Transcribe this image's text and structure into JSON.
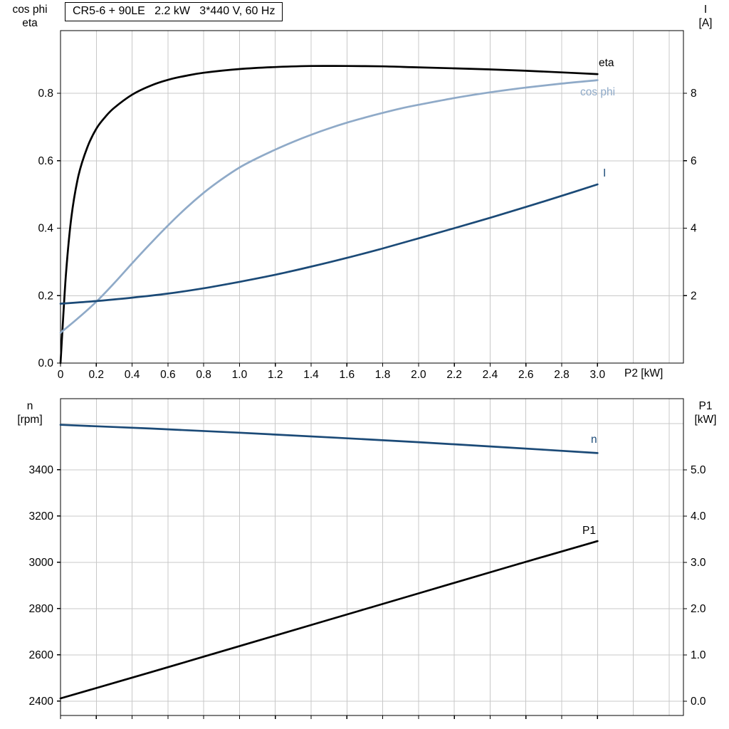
{
  "colors": {
    "black": "#000000",
    "dark_blue": "#1b4a77",
    "light_blue": "#8faac8",
    "grid": "#c8c8c8",
    "axis": "#000000",
    "background": "#ffffff"
  },
  "axis_titles": {
    "top_left": [
      "cos phi",
      "eta"
    ],
    "top_right": [
      "I",
      "[A]"
    ],
    "bottom_left": [
      "n",
      "[rpm]"
    ],
    "bottom_right": [
      "P1",
      "[kW]"
    ],
    "x_label": "P2 [kW]"
  },
  "chart_data": [
    {
      "type": "line",
      "title": "CR5-6 + 90LE   2.2 kW   3*440 V, 60 Hz",
      "x_axis": {
        "label": "P2 [kW]",
        "min": 0,
        "max": 3.48,
        "tick_values": [
          0,
          0.2,
          0.4,
          0.6,
          0.8,
          1.0,
          1.2,
          1.4,
          1.6,
          1.8,
          2.0,
          2.2,
          2.4,
          2.6,
          2.8,
          3.0
        ],
        "tick_labels": [
          "0",
          "0.2",
          "0.4",
          "0.6",
          "0.8",
          "1.0",
          "1.2",
          "1.4",
          "1.6",
          "1.8",
          "2.0",
          "2.2",
          "2.4",
          "2.6",
          "2.8",
          "3.0"
        ],
        "grid_values": [
          0.2,
          0.4,
          0.6,
          0.8,
          1.0,
          1.2,
          1.4,
          1.6,
          1.8,
          2.0,
          2.2,
          2.4,
          2.6,
          2.8,
          3.0,
          3.2,
          3.4
        ]
      },
      "left_axis": {
        "label": "cos phi / eta",
        "min": 0,
        "max": 0.986,
        "tick_values": [
          0.0,
          0.2,
          0.4,
          0.6,
          0.8
        ],
        "tick_labels": [
          "0.0",
          "0.2",
          "0.4",
          "0.6",
          "0.8"
        ],
        "grid_values": [
          0.2,
          0.4,
          0.6,
          0.8
        ]
      },
      "right_axis": {
        "label": "I [A]",
        "min": 0,
        "max": 9.86,
        "tick_values": [
          2,
          4,
          6,
          8
        ],
        "tick_labels": [
          "2",
          "4",
          "6",
          "8"
        ]
      },
      "legend_position": "inline-right",
      "grid": true,
      "series": [
        {
          "name": "eta",
          "axis": "left",
          "color": "black",
          "x": [
            0,
            0.03,
            0.06,
            0.1,
            0.15,
            0.2,
            0.25,
            0.3,
            0.4,
            0.5,
            0.6,
            0.7,
            0.8,
            1.0,
            1.2,
            1.4,
            1.6,
            1.8,
            2.0,
            2.2,
            2.4,
            2.6,
            2.8,
            3.0
          ],
          "y": [
            0,
            0.26,
            0.43,
            0.555,
            0.64,
            0.695,
            0.73,
            0.757,
            0.796,
            0.822,
            0.84,
            0.852,
            0.861,
            0.872,
            0.878,
            0.881,
            0.881,
            0.88,
            0.877,
            0.874,
            0.871,
            0.867,
            0.862,
            0.857
          ]
        },
        {
          "name": "cos phi",
          "axis": "left",
          "color": "light_blue",
          "x": [
            0,
            0.1,
            0.2,
            0.3,
            0.4,
            0.5,
            0.6,
            0.7,
            0.8,
            0.9,
            1.0,
            1.1,
            1.2,
            1.3,
            1.4,
            1.5,
            1.6,
            1.7,
            1.8,
            1.9,
            2.0,
            2.2,
            2.4,
            2.6,
            2.8,
            3.0
          ],
          "y": [
            0.09,
            0.134,
            0.182,
            0.237,
            0.296,
            0.353,
            0.408,
            0.459,
            0.505,
            0.545,
            0.58,
            0.608,
            0.633,
            0.656,
            0.677,
            0.696,
            0.713,
            0.728,
            0.742,
            0.755,
            0.766,
            0.786,
            0.803,
            0.817,
            0.829,
            0.839
          ]
        },
        {
          "name": "I",
          "axis": "right",
          "color": "dark_blue",
          "x": [
            0,
            0.2,
            0.4,
            0.6,
            0.8,
            1.0,
            1.2,
            1.4,
            1.6,
            1.8,
            2.0,
            2.2,
            2.4,
            2.6,
            2.8,
            3.0
          ],
          "y": [
            1.76,
            1.84,
            1.94,
            2.06,
            2.22,
            2.41,
            2.62,
            2.86,
            3.12,
            3.4,
            3.7,
            4.0,
            4.31,
            4.63,
            4.96,
            5.3
          ]
        }
      ]
    },
    {
      "type": "line",
      "title": "",
      "x_axis": {
        "label": "",
        "min": 0,
        "max": 3.48,
        "tick_values": [
          0,
          0.2,
          0.4,
          0.6,
          0.8,
          1.0,
          1.2,
          1.4,
          1.6,
          1.8,
          2.0,
          2.2,
          2.4,
          2.6,
          2.8,
          3.0
        ],
        "tick_labels": [],
        "grid_values": [
          0.2,
          0.4,
          0.6,
          0.8,
          1.0,
          1.2,
          1.4,
          1.6,
          1.8,
          2.0,
          2.2,
          2.4,
          2.6,
          2.8,
          3.0,
          3.2,
          3.4
        ]
      },
      "left_axis": {
        "label": "n [rpm]",
        "min": 2338,
        "max": 3707,
        "tick_values": [
          2400,
          2600,
          2800,
          3000,
          3200,
          3400
        ],
        "tick_labels": [
          "2400",
          "2600",
          "2800",
          "3000",
          "3200",
          "3400"
        ],
        "grid_values": [
          2400,
          2600,
          2800,
          3000,
          3200,
          3400,
          3600
        ]
      },
      "right_axis": {
        "label": "P1 [kW]",
        "min": -0.31,
        "max": 6.54,
        "tick_values": [
          0.0,
          1.0,
          2.0,
          3.0,
          4.0,
          5.0
        ],
        "tick_labels": [
          "0.0",
          "1.0",
          "2.0",
          "3.0",
          "4.0",
          "5.0"
        ]
      },
      "legend_position": "inline-right",
      "grid": true,
      "series": [
        {
          "name": "n",
          "axis": "left",
          "color": "dark_blue",
          "x": [
            0,
            0.5,
            1.0,
            1.5,
            2.0,
            2.5,
            3.0
          ],
          "y": [
            3594,
            3578,
            3560,
            3540,
            3519,
            3496,
            3472
          ]
        },
        {
          "name": "P1",
          "axis": "right",
          "color": "black",
          "x": [
            0,
            0.5,
            1.0,
            1.5,
            2.0,
            2.5,
            3.0
          ],
          "y": [
            0.06,
            0.62,
            1.19,
            1.76,
            2.33,
            2.9,
            3.46
          ]
        }
      ]
    }
  ]
}
